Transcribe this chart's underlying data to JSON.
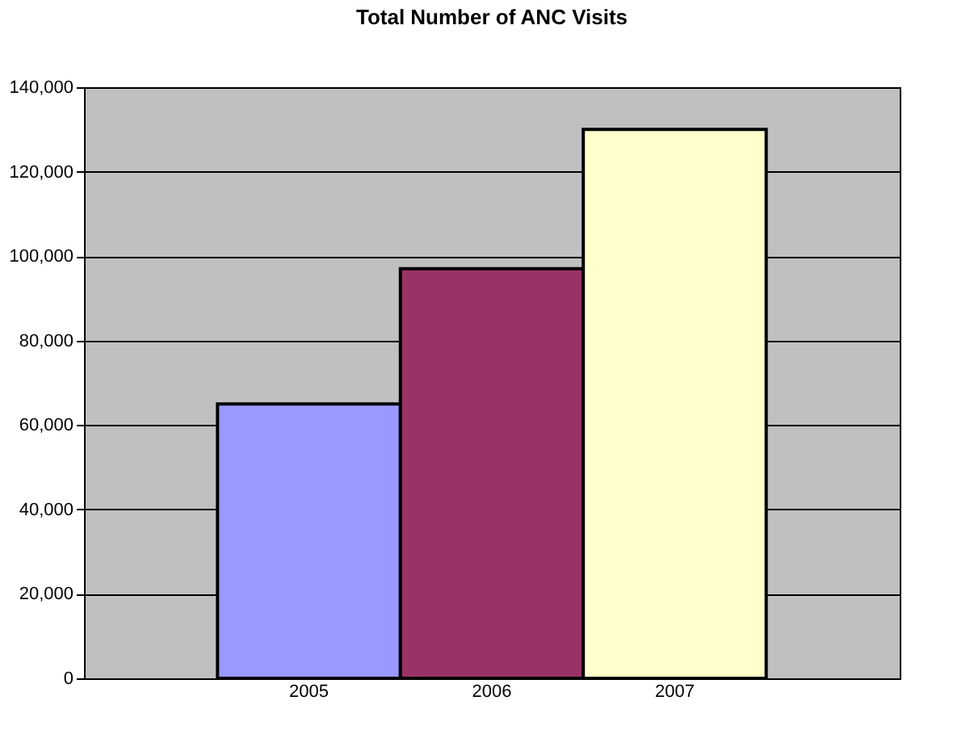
{
  "chart_data": {
    "type": "bar",
    "title": "Total Number of ANC Visits",
    "categories": [
      "2005",
      "2006",
      "2007"
    ],
    "values": [
      65000,
      97000,
      130000
    ],
    "colors": [
      "#9999ff",
      "#993366",
      "#ffffcc"
    ],
    "ylim": [
      0,
      140000
    ],
    "yticks": [
      0,
      {
        "value": 20000,
        "label": "20,000"
      },
      {
        "value": 40000,
        "label": "40,000"
      },
      {
        "value": 60000,
        "label": "60,000"
      },
      {
        "value": 80000,
        "label": "80,000"
      },
      {
        "value": 100000,
        "label": "100,000"
      },
      {
        "value": 120000,
        "label": "120,000"
      },
      {
        "value": 140000,
        "label": "140,000"
      }
    ],
    "grid": "y"
  }
}
